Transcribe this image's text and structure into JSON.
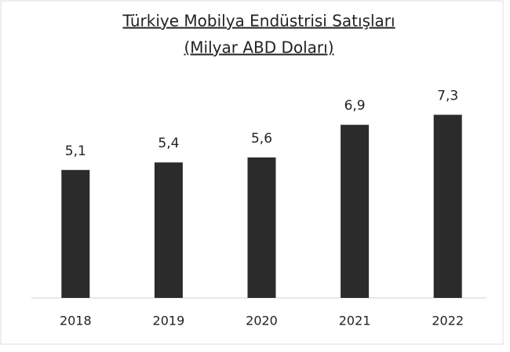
{
  "chart_data": {
    "type": "bar",
    "title": "Türkiye Mobilya Endüstrisi Satışları",
    "subtitle": "(Milyar ABD Doları)",
    "categories": [
      "2018",
      "2019",
      "2020",
      "2021",
      "2022"
    ],
    "values": [
      5.1,
      5.4,
      5.6,
      6.9,
      7.3
    ],
    "value_labels": [
      "5,1",
      "5,4",
      "5,6",
      "6,9",
      "7,3"
    ],
    "color": "#2b2b2b"
  }
}
